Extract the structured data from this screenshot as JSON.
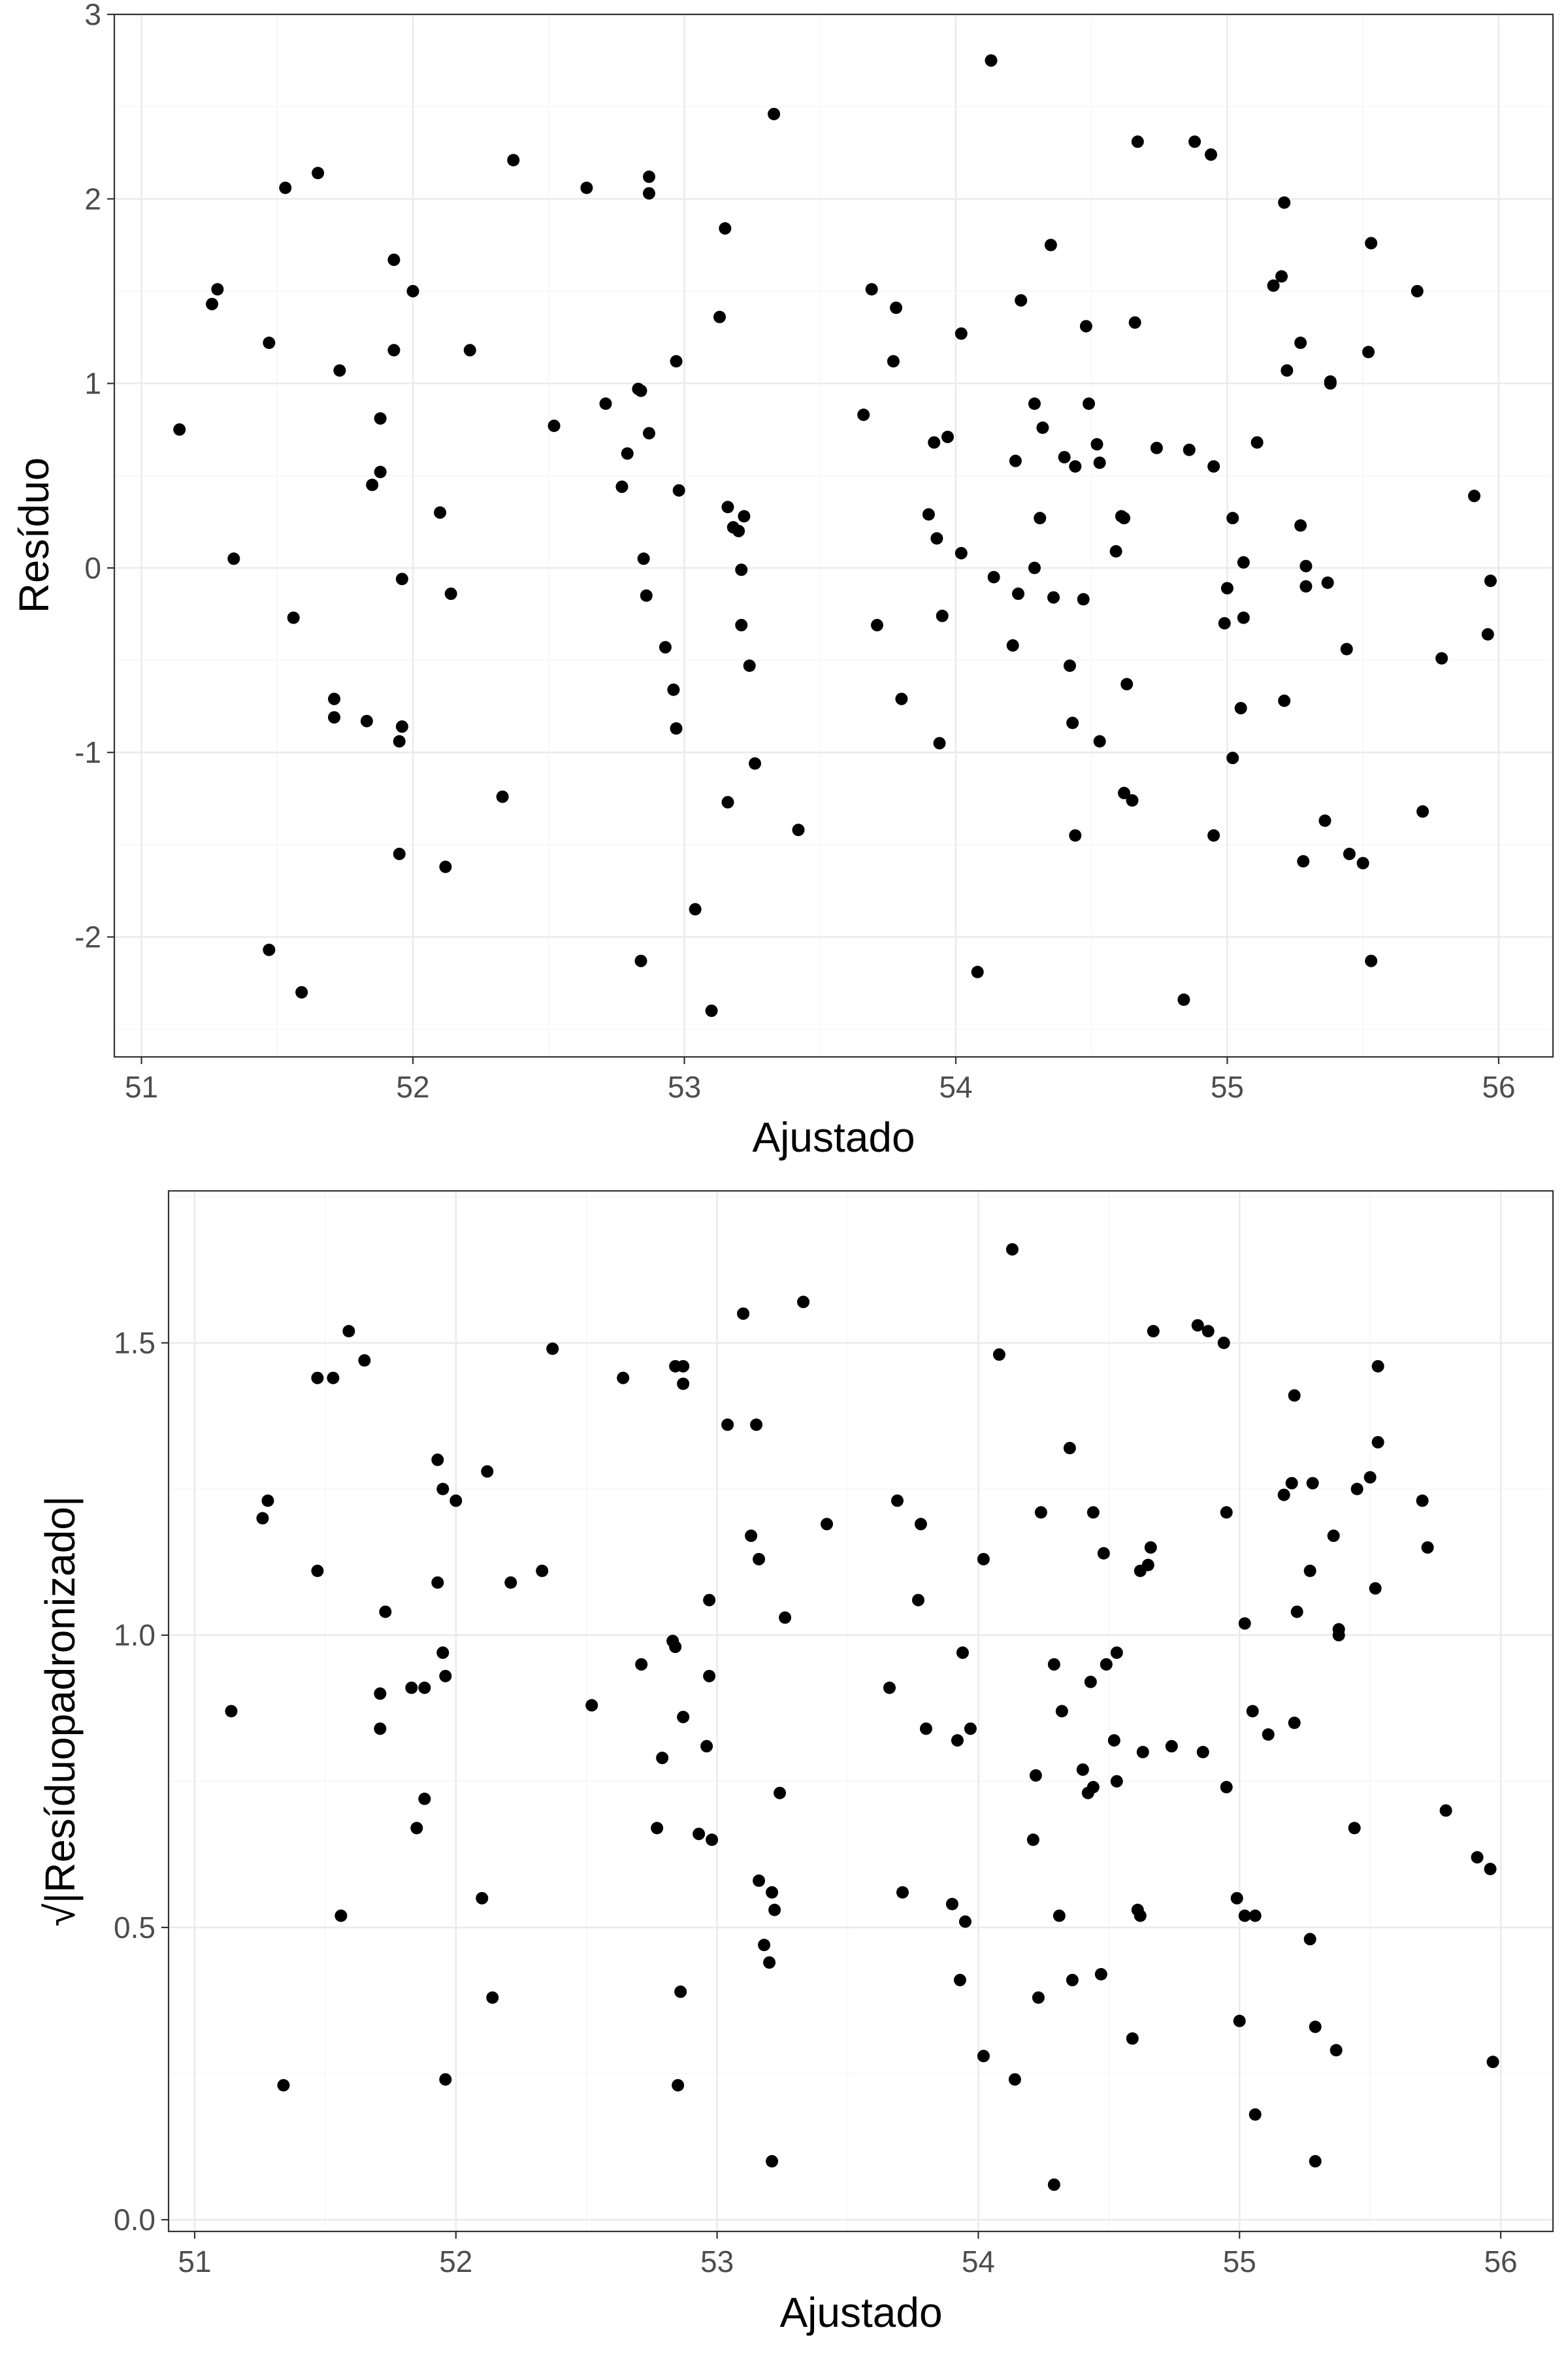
{
  "chart_data": [
    {
      "type": "scatter",
      "xlabel": "Ajustado",
      "ylabel": "Resíduo",
      "xlim": [
        50.9,
        56.2
      ],
      "ylim": [
        -2.65,
        3.0
      ],
      "x_ticks": [
        51,
        52,
        53,
        54,
        55,
        56
      ],
      "y_ticks": [
        -2,
        -1,
        0,
        1,
        2,
        3
      ],
      "x_tick_labels": [
        "51",
        "52",
        "53",
        "54",
        "55",
        "56"
      ],
      "y_tick_labels": [
        "-2",
        "-1",
        "0",
        "1",
        "2",
        "3"
      ],
      "grid": true,
      "point_color": "#000000",
      "points": [
        [
          51.14,
          0.75
        ],
        [
          51.26,
          1.43
        ],
        [
          51.28,
          1.51
        ],
        [
          51.34,
          0.05
        ],
        [
          51.47,
          1.22
        ],
        [
          51.47,
          -2.07
        ],
        [
          51.53,
          2.06
        ],
        [
          51.56,
          -0.27
        ],
        [
          51.59,
          -2.3
        ],
        [
          51.65,
          2.14
        ],
        [
          51.71,
          -0.71
        ],
        [
          51.71,
          -0.81
        ],
        [
          51.73,
          1.07
        ],
        [
          51.83,
          -0.83
        ],
        [
          51.85,
          0.45
        ],
        [
          51.88,
          0.81
        ],
        [
          51.88,
          0.52
        ],
        [
          51.93,
          1.67
        ],
        [
          51.93,
          1.18
        ],
        [
          51.95,
          -0.94
        ],
        [
          51.95,
          -1.55
        ],
        [
          51.96,
          -0.86
        ],
        [
          51.96,
          -0.06
        ],
        [
          52.0,
          1.5
        ],
        [
          52.1,
          0.3
        ],
        [
          52.12,
          -1.62
        ],
        [
          52.14,
          -0.14
        ],
        [
          52.21,
          1.18
        ],
        [
          52.33,
          -1.24
        ],
        [
          52.37,
          2.21
        ],
        [
          52.52,
          0.77
        ],
        [
          52.64,
          2.06
        ],
        [
          52.71,
          0.89
        ],
        [
          52.77,
          0.44
        ],
        [
          52.79,
          0.62
        ],
        [
          52.83,
          0.97
        ],
        [
          52.84,
          0.96
        ],
        [
          52.84,
          -2.13
        ],
        [
          52.85,
          0.05
        ],
        [
          52.86,
          -0.15
        ],
        [
          52.87,
          0.73
        ],
        [
          52.87,
          2.12
        ],
        [
          52.87,
          2.03
        ],
        [
          52.93,
          -0.43
        ],
        [
          52.96,
          -0.66
        ],
        [
          52.97,
          -0.87
        ],
        [
          52.97,
          1.12
        ],
        [
          52.98,
          0.42
        ],
        [
          53.04,
          -1.85
        ],
        [
          53.1,
          -2.4
        ],
        [
          53.13,
          1.36
        ],
        [
          53.15,
          1.84
        ],
        [
          53.16,
          0.33
        ],
        [
          53.16,
          -1.27
        ],
        [
          53.18,
          0.22
        ],
        [
          53.2,
          0.2
        ],
        [
          53.21,
          -0.01
        ],
        [
          53.21,
          -0.31
        ],
        [
          53.22,
          0.28
        ],
        [
          53.24,
          -0.53
        ],
        [
          53.26,
          -1.06
        ],
        [
          53.33,
          2.46
        ],
        [
          53.42,
          -1.42
        ],
        [
          53.66,
          0.83
        ],
        [
          53.69,
          1.51
        ],
        [
          53.71,
          -0.31
        ],
        [
          53.77,
          1.12
        ],
        [
          53.78,
          1.41
        ],
        [
          53.8,
          -0.71
        ],
        [
          53.9,
          0.29
        ],
        [
          53.92,
          0.68
        ],
        [
          53.93,
          0.16
        ],
        [
          53.94,
          -0.95
        ],
        [
          53.95,
          -0.26
        ],
        [
          53.97,
          0.71
        ],
        [
          54.02,
          1.27
        ],
        [
          54.02,
          0.08
        ],
        [
          54.08,
          -2.19
        ],
        [
          54.13,
          2.75
        ],
        [
          54.14,
          -0.05
        ],
        [
          54.21,
          -0.42
        ],
        [
          54.22,
          0.58
        ],
        [
          54.23,
          -0.14
        ],
        [
          54.24,
          1.45
        ],
        [
          54.29,
          0.89
        ],
        [
          54.29,
          0.0
        ],
        [
          54.31,
          0.27
        ],
        [
          54.32,
          0.76
        ],
        [
          54.35,
          1.75
        ],
        [
          54.36,
          -0.16
        ],
        [
          54.4,
          0.6
        ],
        [
          54.42,
          -0.53
        ],
        [
          54.43,
          -0.84
        ],
        [
          54.44,
          0.55
        ],
        [
          54.44,
          -1.45
        ],
        [
          54.47,
          -0.17
        ],
        [
          54.48,
          1.31
        ],
        [
          54.49,
          0.89
        ],
        [
          54.52,
          0.67
        ],
        [
          54.53,
          0.57
        ],
        [
          54.53,
          -0.94
        ],
        [
          54.59,
          0.09
        ],
        [
          54.61,
          0.28
        ],
        [
          54.62,
          0.27
        ],
        [
          54.62,
          -1.22
        ],
        [
          54.63,
          -0.63
        ],
        [
          54.65,
          -1.26
        ],
        [
          54.66,
          1.33
        ],
        [
          54.67,
          2.31
        ],
        [
          54.74,
          0.65
        ],
        [
          54.84,
          -2.34
        ],
        [
          54.86,
          0.64
        ],
        [
          54.88,
          2.31
        ],
        [
          54.94,
          2.24
        ],
        [
          54.95,
          0.55
        ],
        [
          54.95,
          -1.45
        ],
        [
          54.99,
          -0.3
        ],
        [
          55.0,
          -0.11
        ],
        [
          55.02,
          0.27
        ],
        [
          55.02,
          -1.03
        ],
        [
          55.05,
          -0.76
        ],
        [
          55.06,
          0.03
        ],
        [
          55.06,
          -0.27
        ],
        [
          55.11,
          0.68
        ],
        [
          55.17,
          1.53
        ],
        [
          55.2,
          1.58
        ],
        [
          55.21,
          1.98
        ],
        [
          55.21,
          -0.72
        ],
        [
          55.22,
          1.07
        ],
        [
          55.27,
          0.23
        ],
        [
          55.27,
          1.22
        ],
        [
          55.28,
          -1.59
        ],
        [
          55.29,
          0.01
        ],
        [
          55.29,
          -0.1
        ],
        [
          55.36,
          -1.37
        ],
        [
          55.37,
          -0.08
        ],
        [
          55.38,
          1.01
        ],
        [
          55.38,
          1.0
        ],
        [
          55.44,
          -0.44
        ],
        [
          55.45,
          -1.55
        ],
        [
          55.5,
          -1.6
        ],
        [
          55.52,
          1.17
        ],
        [
          55.53,
          -2.13
        ],
        [
          55.53,
          1.76
        ],
        [
          55.7,
          1.5
        ],
        [
          55.72,
          -1.32
        ],
        [
          55.79,
          -0.49
        ],
        [
          55.91,
          0.39
        ],
        [
          55.96,
          -0.36
        ],
        [
          55.97,
          -0.07
        ]
      ]
    },
    {
      "type": "scatter",
      "xlabel": "Ajustado",
      "ylabel": "√|Resíduopadronizado|",
      "xlim": [
        50.9,
        56.2
      ],
      "ylim": [
        -0.02,
        1.76
      ],
      "x_ticks": [
        51,
        52,
        53,
        54,
        55,
        56
      ],
      "y_ticks": [
        0.0,
        0.5,
        1.0,
        1.5
      ],
      "x_tick_labels": [
        "51",
        "52",
        "53",
        "54",
        "55",
        "56"
      ],
      "y_tick_labels": [
        "0.0",
        "0.5",
        "1.0",
        "1.5"
      ],
      "grid": true,
      "point_color": "#000000",
      "points": [
        [
          51.14,
          0.87
        ],
        [
          51.26,
          1.2
        ],
        [
          51.28,
          1.23
        ],
        [
          51.34,
          0.23
        ],
        [
          51.47,
          1.11
        ],
        [
          51.47,
          1.44
        ],
        [
          51.53,
          1.44
        ],
        [
          51.56,
          0.52
        ],
        [
          51.59,
          1.52
        ],
        [
          51.65,
          1.47
        ],
        [
          51.71,
          0.84
        ],
        [
          51.71,
          0.9
        ],
        [
          51.73,
          1.04
        ],
        [
          51.83,
          0.91
        ],
        [
          51.85,
          0.67
        ],
        [
          51.88,
          0.91
        ],
        [
          51.88,
          0.72
        ],
        [
          51.93,
          1.3
        ],
        [
          51.93,
          1.09
        ],
        [
          51.95,
          0.97
        ],
        [
          51.95,
          1.25
        ],
        [
          51.96,
          0.93
        ],
        [
          51.96,
          0.24
        ],
        [
          52.0,
          1.23
        ],
        [
          52.1,
          0.55
        ],
        [
          52.12,
          1.28
        ],
        [
          52.14,
          0.38
        ],
        [
          52.21,
          1.09
        ],
        [
          52.33,
          1.11
        ],
        [
          52.37,
          1.49
        ],
        [
          52.52,
          0.88
        ],
        [
          52.64,
          1.44
        ],
        [
          52.71,
          0.95
        ],
        [
          52.77,
          0.67
        ],
        [
          52.79,
          0.79
        ],
        [
          52.83,
          0.99
        ],
        [
          52.84,
          0.98
        ],
        [
          52.84,
          1.46
        ],
        [
          52.85,
          0.23
        ],
        [
          52.86,
          0.39
        ],
        [
          52.87,
          0.86
        ],
        [
          52.87,
          1.46
        ],
        [
          52.87,
          1.43
        ],
        [
          52.93,
          0.66
        ],
        [
          52.96,
          0.81
        ],
        [
          52.97,
          0.93
        ],
        [
          52.97,
          1.06
        ],
        [
          52.98,
          0.65
        ],
        [
          53.04,
          1.36
        ],
        [
          53.1,
          1.55
        ],
        [
          53.13,
          1.17
        ],
        [
          53.15,
          1.36
        ],
        [
          53.16,
          0.58
        ],
        [
          53.16,
          1.13
        ],
        [
          53.18,
          0.47
        ],
        [
          53.2,
          0.44
        ],
        [
          53.21,
          0.1
        ],
        [
          53.21,
          0.56
        ],
        [
          53.22,
          0.53
        ],
        [
          53.24,
          0.73
        ],
        [
          53.26,
          1.03
        ],
        [
          53.33,
          1.57
        ],
        [
          53.42,
          1.19
        ],
        [
          53.66,
          0.91
        ],
        [
          53.69,
          1.23
        ],
        [
          53.71,
          0.56
        ],
        [
          53.77,
          1.06
        ],
        [
          53.78,
          1.19
        ],
        [
          53.8,
          0.84
        ],
        [
          53.9,
          0.54
        ],
        [
          53.92,
          0.82
        ],
        [
          53.93,
          0.41
        ],
        [
          53.94,
          0.97
        ],
        [
          53.95,
          0.51
        ],
        [
          53.97,
          0.84
        ],
        [
          54.02,
          1.13
        ],
        [
          54.02,
          0.28
        ],
        [
          54.08,
          1.48
        ],
        [
          54.13,
          1.66
        ],
        [
          54.14,
          0.24
        ],
        [
          54.21,
          0.65
        ],
        [
          54.22,
          0.76
        ],
        [
          54.23,
          0.38
        ],
        [
          54.24,
          1.21
        ],
        [
          54.29,
          0.95
        ],
        [
          54.29,
          0.06
        ],
        [
          54.31,
          0.52
        ],
        [
          54.32,
          0.87
        ],
        [
          54.35,
          1.32
        ],
        [
          54.36,
          0.41
        ],
        [
          54.4,
          0.77
        ],
        [
          54.42,
          0.73
        ],
        [
          54.43,
          0.92
        ],
        [
          54.44,
          0.74
        ],
        [
          54.44,
          1.21
        ],
        [
          54.47,
          0.42
        ],
        [
          54.48,
          1.14
        ],
        [
          54.49,
          0.95
        ],
        [
          54.52,
          0.82
        ],
        [
          54.53,
          0.97
        ],
        [
          54.53,
          0.75
        ],
        [
          54.59,
          0.31
        ],
        [
          54.61,
          0.53
        ],
        [
          54.62,
          0.52
        ],
        [
          54.62,
          1.11
        ],
        [
          54.63,
          0.8
        ],
        [
          54.65,
          1.12
        ],
        [
          54.66,
          1.15
        ],
        [
          54.67,
          1.52
        ],
        [
          54.74,
          0.81
        ],
        [
          54.84,
          1.53
        ],
        [
          54.86,
          0.8
        ],
        [
          54.88,
          1.52
        ],
        [
          54.94,
          1.5
        ],
        [
          54.95,
          0.74
        ],
        [
          54.95,
          1.21
        ],
        [
          54.99,
          0.55
        ],
        [
          55.0,
          0.34
        ],
        [
          55.02,
          0.52
        ],
        [
          55.02,
          1.02
        ],
        [
          55.05,
          0.87
        ],
        [
          55.06,
          0.18
        ],
        [
          55.06,
          0.52
        ],
        [
          55.11,
          0.83
        ],
        [
          55.17,
          1.24
        ],
        [
          55.2,
          1.26
        ],
        [
          55.21,
          1.41
        ],
        [
          55.21,
          0.85
        ],
        [
          55.22,
          1.04
        ],
        [
          55.27,
          0.48
        ],
        [
          55.27,
          1.11
        ],
        [
          55.28,
          1.26
        ],
        [
          55.29,
          0.1
        ],
        [
          55.29,
          0.33
        ],
        [
          55.36,
          1.17
        ],
        [
          55.37,
          0.29
        ],
        [
          55.38,
          1.01
        ],
        [
          55.38,
          1.0
        ],
        [
          55.44,
          0.67
        ],
        [
          55.45,
          1.25
        ],
        [
          55.5,
          1.27
        ],
        [
          55.52,
          1.08
        ],
        [
          55.53,
          1.46
        ],
        [
          55.53,
          1.33
        ],
        [
          55.7,
          1.23
        ],
        [
          55.72,
          1.15
        ],
        [
          55.79,
          0.7
        ],
        [
          55.91,
          0.62
        ],
        [
          55.96,
          0.6
        ],
        [
          55.97,
          0.27
        ]
      ]
    }
  ]
}
